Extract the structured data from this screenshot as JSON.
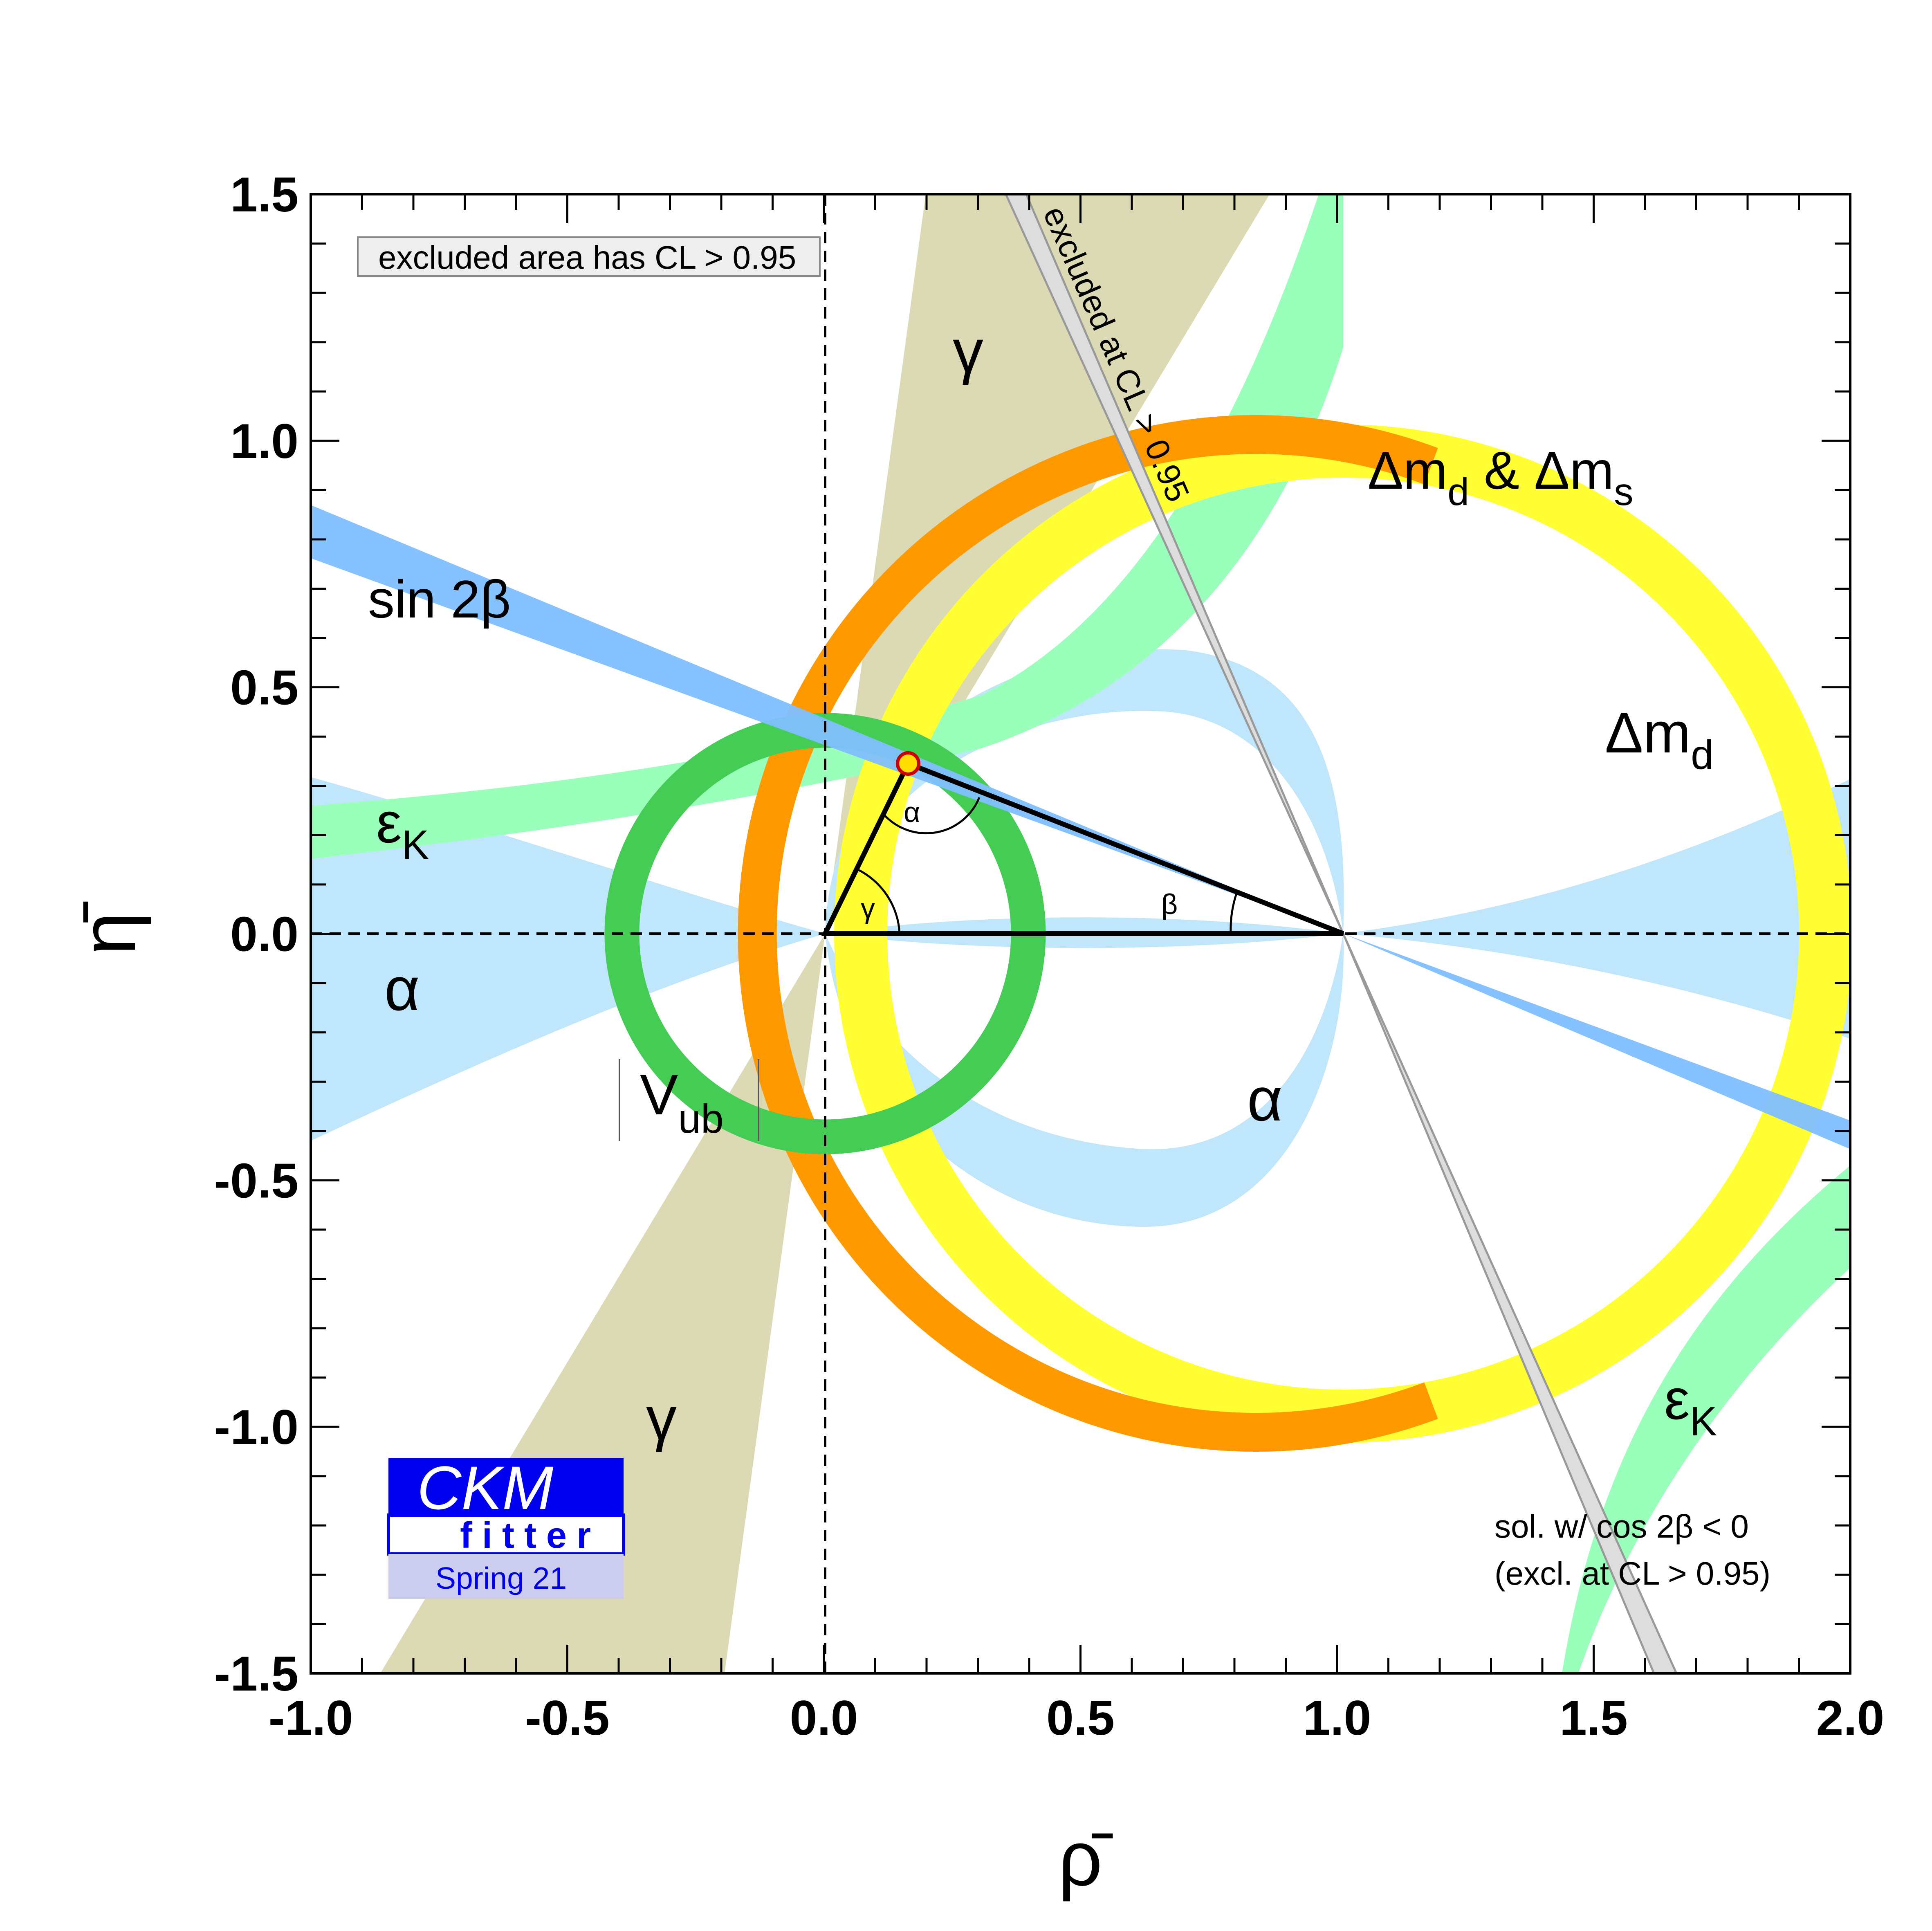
{
  "chart_data": {
    "type": "contour",
    "xlabel": "ρ̄",
    "ylabel": "η̄",
    "xlim": [
      -1.0,
      2.0
    ],
    "ylim": [
      -1.5,
      1.5
    ],
    "x_ticks": [
      "-1.0",
      "-0.5",
      "0.0",
      "0.5",
      "1.0",
      "1.5",
      "2.0"
    ],
    "y_ticks": [
      "1.5",
      "1.0",
      "0.5",
      "0.0",
      "-0.5",
      "-1.0",
      "-1.5"
    ],
    "apex": {
      "rho": 0.16,
      "eta": 0.345
    },
    "constraints": [
      {
        "name": "sin 2β",
        "color": "#7fbfff",
        "line_anchor": {
          "rho": 1.0,
          "eta": 0.0
        },
        "slope": -0.43
      },
      {
        "name": "Δm_d & Δm_s",
        "color": "#ff9900",
        "center": {
          "rho": 1.0,
          "eta": 0.0
        },
        "radius": 0.85
      },
      {
        "name": "Δm_d",
        "color": "#ffff33",
        "center": {
          "rho": 1.0,
          "eta": 0.0
        },
        "radius": 0.87
      },
      {
        "name": "V_ub",
        "color": "#44cc55",
        "center": {
          "rho": 0.0,
          "eta": 0.0
        },
        "radius": 0.4
      },
      {
        "name": "γ",
        "color": "#d6d3a8",
        "angle_deg": [
          62,
          72
        ]
      },
      {
        "name": "α",
        "color": "#bfe6fa"
      },
      {
        "name": "ε_K",
        "color": "#99ffbb"
      }
    ],
    "angle_labels": [
      "α",
      "β",
      "γ"
    ],
    "region_labels": {
      "gamma_top": "γ",
      "gamma_bottom": "γ",
      "alpha_left": "α",
      "alpha_right": "α",
      "epsk_left_main": "ε",
      "epsk_left_sub": "K",
      "epsk_right_main": "ε",
      "epsk_right_sub": "K",
      "sin2beta": "sin 2β",
      "dmd_main": "Δm",
      "dmd_sub": "d",
      "dmds_a": "Δm",
      "dmds_b": "d",
      "dmds_c": " & Δm",
      "dmds_d": "s",
      "vub_main": "V",
      "vub_sub": "ub"
    },
    "notes": {
      "excluded_box": "excluded area has CL > 0.95",
      "excluded_line": "excluded at CL > 0.95",
      "sol_line1": "sol. w/ cos 2β < 0",
      "sol_line2": "(excl. at CL > 0.95)"
    }
  },
  "logo": {
    "line1": "CKM",
    "line2": "fitter",
    "line3": "Spring 21",
    "colors": {
      "blue": "#0000ee",
      "band": "#ccccee"
    }
  }
}
